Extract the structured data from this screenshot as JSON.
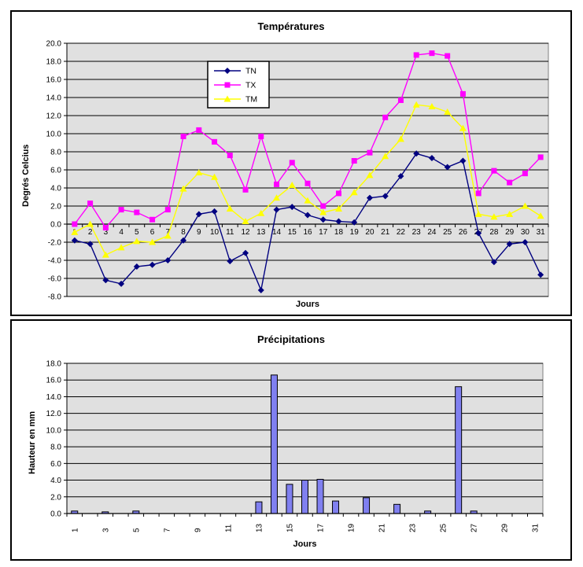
{
  "panels": {
    "temperatures": {
      "title": "Températures",
      "ylabel": "Degrés Celcius",
      "xlabel": "Jours"
    },
    "precipitations": {
      "title": "Précipitations",
      "ylabel": "Hauteur en mm",
      "xlabel": "Jours"
    }
  },
  "chart_data": [
    {
      "type": "line",
      "title": "Températures",
      "xlabel": "Jours",
      "ylabel": "Degrés Celcius",
      "x": [
        1,
        2,
        3,
        4,
        5,
        6,
        7,
        8,
        9,
        10,
        11,
        12,
        13,
        14,
        15,
        16,
        17,
        18,
        19,
        20,
        21,
        22,
        23,
        24,
        25,
        26,
        27,
        28,
        29,
        30,
        31
      ],
      "ylim": [
        -8,
        20
      ],
      "ytick_step": 2,
      "grid": true,
      "plot_bg": "#E0E0E0",
      "plot_border": "#808080",
      "legend": {
        "position": "inside-upper-left-center",
        "entries": [
          "TN",
          "TX",
          "TM"
        ]
      },
      "series": [
        {
          "name": "TN",
          "color": "#000080",
          "marker": "diamond",
          "values": [
            -1.8,
            -2.2,
            -6.2,
            -6.6,
            -4.7,
            -4.5,
            -4.0,
            -1.8,
            1.1,
            1.4,
            -4.1,
            -3.2,
            -7.3,
            1.6,
            1.9,
            1.0,
            0.5,
            0.3,
            0.2,
            2.9,
            3.1,
            5.3,
            7.8,
            7.3,
            6.3,
            7.0,
            -1.0,
            -4.2,
            -2.2,
            -2.0,
            -5.6
          ]
        },
        {
          "name": "TX",
          "color": "#FF00FF",
          "marker": "square",
          "values": [
            0.0,
            2.3,
            -0.4,
            1.6,
            1.3,
            0.5,
            1.6,
            9.7,
            10.4,
            9.1,
            7.6,
            3.8,
            9.7,
            4.4,
            6.8,
            4.5,
            2.0,
            3.4,
            7.0,
            7.9,
            11.8,
            13.7,
            18.7,
            18.9,
            18.6,
            14.4,
            3.4,
            5.9,
            4.6,
            5.6,
            7.4
          ]
        },
        {
          "name": "TM",
          "color": "#FFFF00",
          "marker": "triangle",
          "values": [
            -0.9,
            0.0,
            -3.4,
            -2.6,
            -1.9,
            -2.0,
            -1.3,
            3.9,
            5.7,
            5.2,
            1.7,
            0.3,
            1.2,
            2.9,
            4.3,
            2.6,
            1.3,
            1.7,
            3.5,
            5.4,
            7.5,
            9.4,
            13.2,
            13.0,
            12.4,
            10.6,
            1.1,
            0.8,
            1.1,
            2.0,
            0.9
          ]
        }
      ]
    },
    {
      "type": "bar",
      "title": "Précipitations",
      "xlabel": "Jours",
      "ylabel": "Hauteur en mm",
      "categories": [
        1,
        2,
        3,
        4,
        5,
        6,
        7,
        8,
        9,
        10,
        11,
        12,
        13,
        14,
        15,
        16,
        17,
        18,
        19,
        20,
        21,
        22,
        23,
        24,
        25,
        26,
        27,
        28,
        29,
        30,
        31
      ],
      "values": [
        0.3,
        0,
        0.2,
        0,
        0.3,
        0,
        0,
        0,
        0,
        0,
        0,
        0,
        1.4,
        16.6,
        3.5,
        4.0,
        4.1,
        1.5,
        0,
        1.9,
        0,
        1.1,
        0,
        0.3,
        0,
        15.2,
        0.3,
        0,
        0,
        0,
        0
      ],
      "ylim": [
        0,
        18
      ],
      "ytick_step": 2,
      "grid": true,
      "plot_bg": "#E0E0E0",
      "plot_border": "#808080",
      "bar_color": "#8080F0",
      "bar_border": "#000000",
      "xtick_label_every": 2,
      "xtick_rotation": -90
    }
  ]
}
